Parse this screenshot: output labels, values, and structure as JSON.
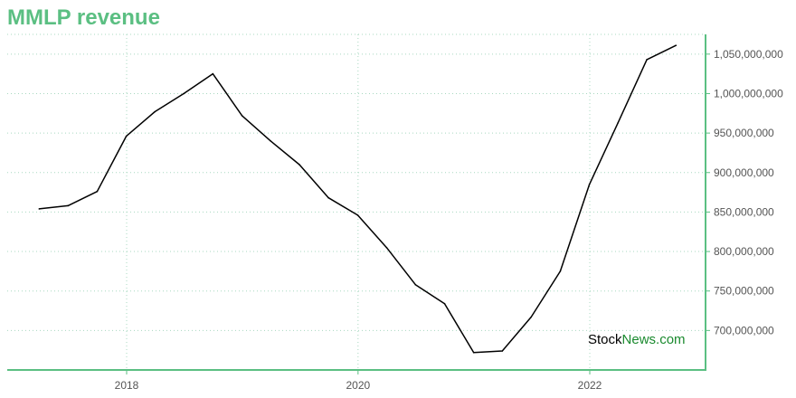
{
  "chart_data": {
    "type": "line",
    "title": "MMLP revenue",
    "xlabel": "",
    "ylabel": "",
    "x_ticks": [
      "2018",
      "2020",
      "2022"
    ],
    "y_ticks": [
      "700,000,000",
      "750,000,000",
      "800,000,000",
      "850,000,000",
      "900,000,000",
      "950,000,000",
      "1,000,000,000",
      "1,050,000,000"
    ],
    "ylim": [
      650000000,
      1075000000
    ],
    "grid": true,
    "y_axis_position": "right",
    "series": [
      {
        "color": "#000000",
        "x": [
          "2017-03-31",
          "2017-06-30",
          "2017-09-30",
          "2017-12-31",
          "2018-03-31",
          "2018-06-30",
          "2018-09-30",
          "2018-12-31",
          "2019-03-31",
          "2019-06-30",
          "2019-09-30",
          "2019-12-31",
          "2020-03-31",
          "2020-06-30",
          "2020-09-30",
          "2020-12-31",
          "2021-03-31",
          "2021-06-30",
          "2021-09-30",
          "2021-12-31",
          "2022-03-31",
          "2022-06-30",
          "2022-09-30"
        ],
        "values": [
          854000000,
          858000000,
          876000000,
          946000000,
          977000000,
          1000000000,
          1025000000,
          972000000,
          940000000,
          910000000,
          868000000,
          846000000,
          805000000,
          758000000,
          734000000,
          672000000,
          674000000,
          717000000,
          775000000,
          885000000,
          963000000,
          1043000000,
          1061000000
        ]
      }
    ]
  },
  "watermark": {
    "part1": "Stock",
    "part2": "News",
    "part3": ".com",
    "color_dark": "#000000",
    "color_green": "#1a8a2e"
  },
  "colors": {
    "title": "#5bbf82",
    "axis": "#5bbf82",
    "grid": "#a8d8c0",
    "line": "#000000",
    "tick_text": "#555555"
  }
}
